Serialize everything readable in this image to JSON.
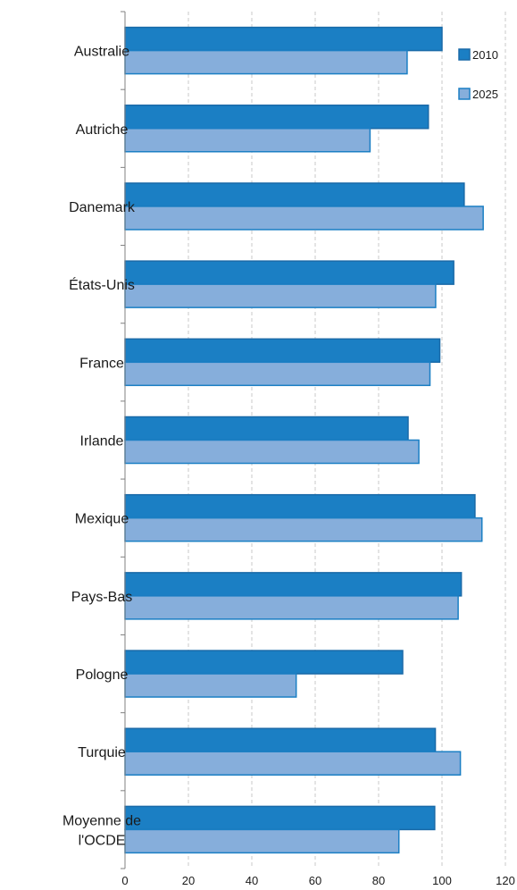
{
  "chart_data": {
    "type": "bar",
    "orientation": "horizontal",
    "categories": [
      [
        "Australie"
      ],
      [
        "Autriche"
      ],
      [
        "Danemark"
      ],
      [
        "États-Unis"
      ],
      [
        "France"
      ],
      [
        "Irlande"
      ],
      [
        "Mexique"
      ],
      [
        "Pays-Bas"
      ],
      [
        "Pologne"
      ],
      [
        "Turquie"
      ],
      [
        "Moyenne de",
        "l'OCDE"
      ]
    ],
    "series": [
      {
        "name": "2010",
        "color": "#1b7fc4",
        "values": [
          100,
          95.7,
          107,
          103.7,
          99.3,
          89.3,
          110.4,
          106.1,
          87.6,
          97.9,
          97.7
        ]
      },
      {
        "name": "2025",
        "color": "#86aedb",
        "values": [
          89,
          77.3,
          113,
          98,
          96.2,
          92.7,
          112.6,
          105.1,
          54,
          105.8,
          86.4
        ]
      }
    ],
    "xlim": [
      0,
      120
    ],
    "xticks": [
      "0",
      "20",
      "40",
      "60",
      "80",
      "100",
      "120"
    ],
    "grid": "vertical-dashed",
    "legend_position": "top-right"
  }
}
